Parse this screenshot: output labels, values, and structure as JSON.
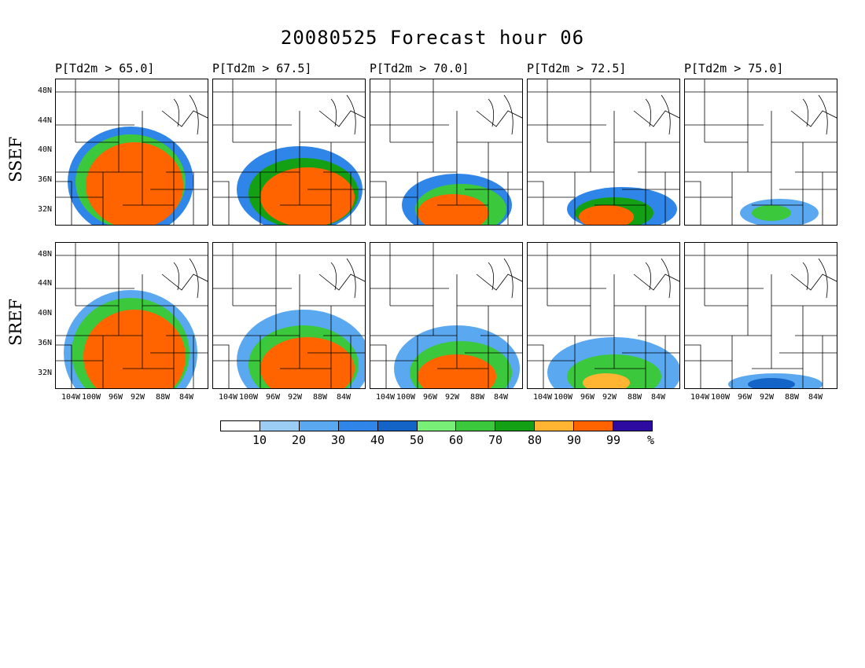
{
  "title": "20080525 Forecast hour 06",
  "columns": [
    {
      "label": "P[Td2m > 65.0]",
      "threshold": 65.0
    },
    {
      "label": "P[Td2m > 67.5]",
      "threshold": 67.5
    },
    {
      "label": "P[Td2m > 70.0]",
      "threshold": 70.0
    },
    {
      "label": "P[Td2m > 72.5]",
      "threshold": 72.5
    },
    {
      "label": "P[Td2m > 75.0]",
      "threshold": 75.0
    }
  ],
  "rows": [
    {
      "label": "SSEF"
    },
    {
      "label": "SREF"
    }
  ],
  "lat_labels": [
    "48N",
    "44N",
    "40N",
    "36N",
    "32N"
  ],
  "lon_labels": [
    "104W",
    "100W",
    "96W",
    "92W",
    "88W",
    "84W"
  ],
  "colorbar": {
    "levels": [
      "10",
      "20",
      "30",
      "40",
      "50",
      "60",
      "70",
      "80",
      "90",
      "99"
    ],
    "unit": "%",
    "colors": [
      "#ffffff",
      "#9ccdf5",
      "#5aa8f0",
      "#2f85e8",
      "#1464c8",
      "#78f078",
      "#3cc83c",
      "#14a014",
      "#ffb432",
      "#ff6400",
      "#2d0aa0"
    ]
  }
}
